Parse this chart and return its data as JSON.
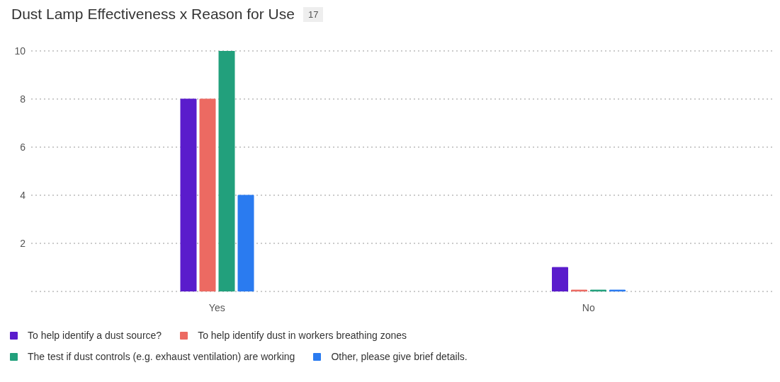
{
  "chart_data": {
    "type": "bar",
    "title": "Dust Lamp Effectiveness x Reason for Use",
    "subtitle": "17",
    "categories": [
      "Yes",
      "No"
    ],
    "series": [
      {
        "name": "To help identify a dust source?",
        "color": "#5a1ccc",
        "values": [
          8,
          1
        ]
      },
      {
        "name": "To help identify dust in workers breathing zones",
        "color": "#ec6a62",
        "values": [
          8,
          0
        ]
      },
      {
        "name": "The test if dust controls (e.g. exhaust ventilation) are working",
        "color": "#22a07c",
        "values": [
          10,
          0
        ]
      },
      {
        "name": "Other, please give brief details.",
        "color": "#2a7bf0",
        "values": [
          4,
          0
        ]
      }
    ],
    "ylim": [
      0,
      10
    ],
    "yticks": [
      {
        "value": 0,
        "label": null
      },
      2,
      4,
      6,
      8,
      10
    ],
    "grid": "y",
    "legend": "bottom"
  }
}
